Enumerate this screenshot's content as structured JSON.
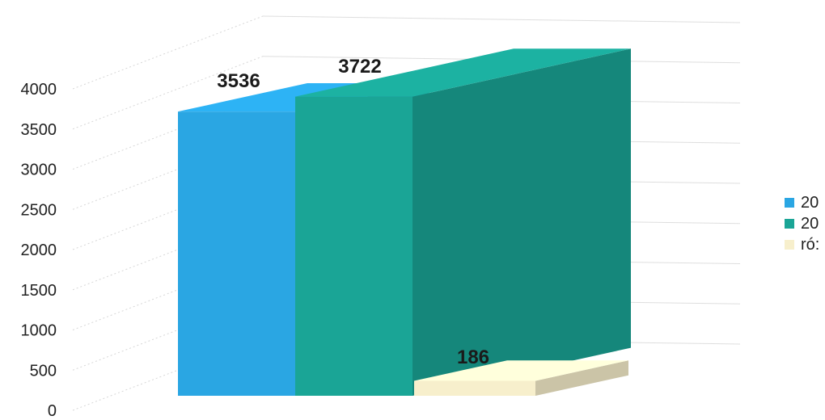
{
  "chart_data": {
    "type": "bar",
    "categories": [
      "20",
      "20",
      "ró:"
    ],
    "values": [
      3536,
      3722,
      186
    ],
    "data_labels": [
      "3536",
      "3722",
      "186"
    ],
    "title": "",
    "xlabel": "",
    "ylabel": "",
    "ylim": [
      0,
      4000
    ],
    "yticks": [
      "0",
      "500",
      "1000",
      "1500",
      "2000",
      "2500",
      "3000",
      "3500",
      "4000"
    ],
    "grid": true,
    "legend": {
      "placement": "right",
      "entries": [
        "20",
        "20",
        "ró:"
      ]
    },
    "colors": [
      "#2aa6e3",
      "#1aa596",
      "#f7efcc"
    ]
  }
}
